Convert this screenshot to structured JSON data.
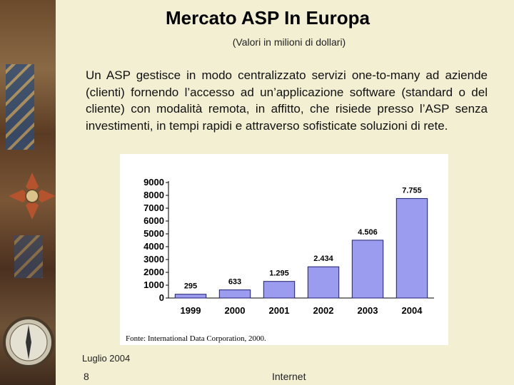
{
  "slide": {
    "title": "Mercato ASP In Europa",
    "subtitle": "(Valori in milioni di dollari)",
    "body": "Un ASP gestisce in modo centralizzato servizi one-to-many ad aziende (clienti)  fornendo l’accesso ad un’applicazione software (standard o del cliente) con modalità remota, in affitto, che risiede presso l’ASP senza investimenti, in tempi rapidi e attraverso sofisticate soluzioni di rete.",
    "footer_date": "Luglio 2004",
    "footer_page": "8",
    "footer_topic": "Internet"
  },
  "chart_data": {
    "type": "bar",
    "categories": [
      "1999",
      "2000",
      "2001",
      "2002",
      "2003",
      "2004"
    ],
    "values": [
      295,
      633,
      1295,
      2434,
      4506,
      7755
    ],
    "data_labels": [
      "295",
      "633",
      "1.295",
      "2.434",
      "4.506",
      "7.755"
    ],
    "yticks": [
      "0",
      "1000",
      "2000",
      "3000",
      "4000",
      "5000",
      "6000",
      "7000",
      "8000",
      "9000"
    ],
    "ylim": [
      0,
      9000
    ],
    "source": "Fonte: International Data Corporation, 2000.",
    "bar_color": "#9b9cf0",
    "grid": false,
    "legend": "none"
  }
}
